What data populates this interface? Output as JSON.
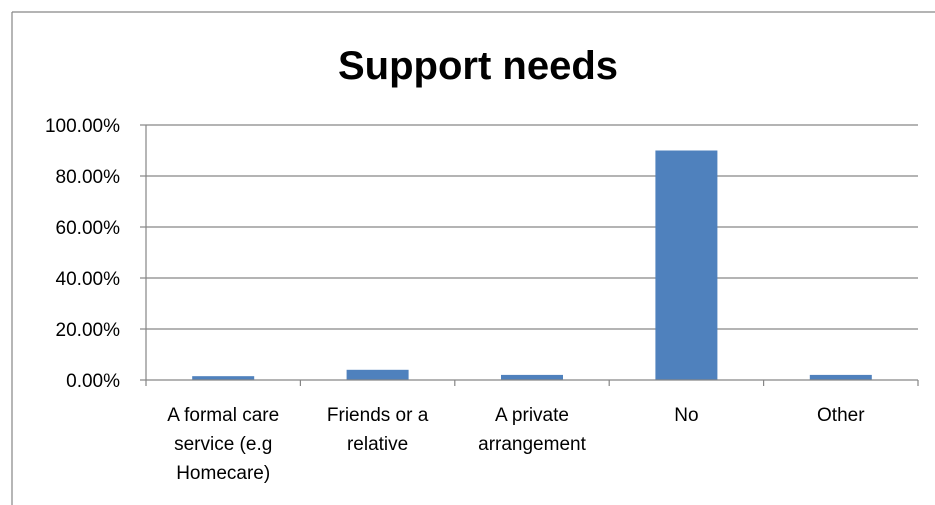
{
  "chart_data": {
    "type": "bar",
    "title": "Support needs",
    "categories": [
      [
        "A formal care",
        "service (e.g",
        "Homecare)"
      ],
      [
        "Friends or a",
        "relative"
      ],
      [
        "A private",
        "arrangement"
      ],
      [
        "No"
      ],
      [
        "Other"
      ]
    ],
    "values": [
      1.5,
      4.0,
      2.0,
      90.0,
      2.0
    ],
    "ylim": [
      0,
      100
    ],
    "yticks": [
      "0.00%",
      "20.00%",
      "40.00%",
      "60.00%",
      "80.00%",
      "100.00%"
    ],
    "ytick_values": [
      0,
      20,
      40,
      60,
      80,
      100
    ],
    "grid": true,
    "legend": "none",
    "bar_color": "#4f81bd"
  }
}
